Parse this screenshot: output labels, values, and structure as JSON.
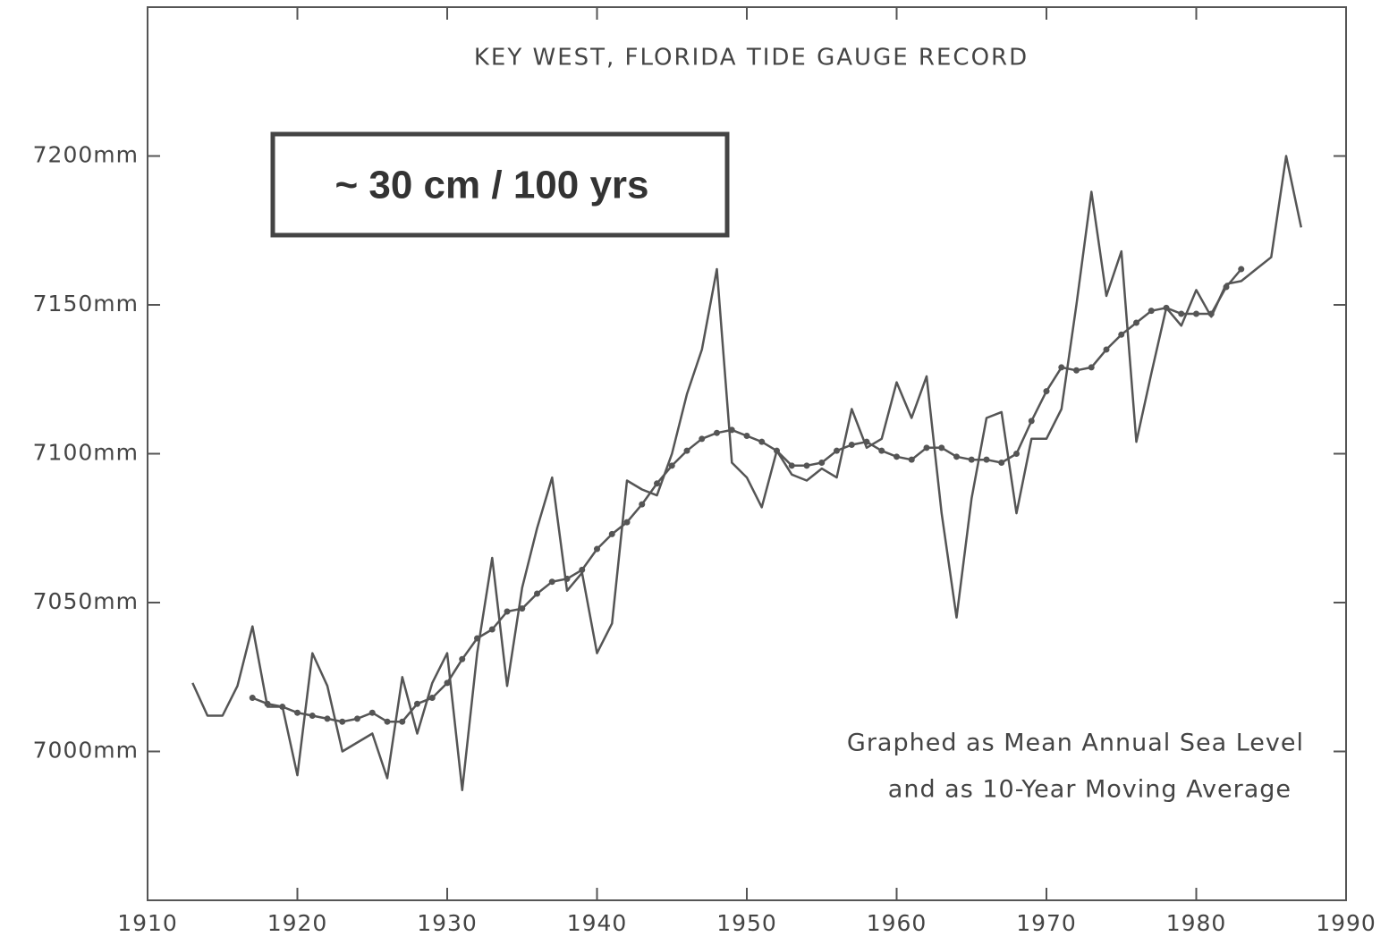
{
  "chart_data": {
    "type": "line",
    "title": "KEY WEST, FLORIDA TIDE GAUGE RECORD",
    "annotations": [
      "~ 30 cm / 100 yrs",
      "Graphed as Mean Annual Sea Level",
      "and as 10-Year Moving Average"
    ],
    "xlim": [
      1910,
      1990
    ],
    "xticks": [
      1910,
      1920,
      1930,
      1940,
      1950,
      1960,
      1970,
      1980,
      1990
    ],
    "ylim": [
      6950,
      7250
    ],
    "yticks": [
      {
        "value": 7000,
        "label": "7000mm"
      },
      {
        "value": 7050,
        "label": "7050mm"
      },
      {
        "value": 7100,
        "label": "7100mm"
      },
      {
        "value": 7150,
        "label": "7150mm"
      },
      {
        "value": 7200,
        "label": "7200mm"
      }
    ],
    "series": [
      {
        "color": "#555555",
        "markers": false,
        "x": [
          1913,
          1914,
          1915,
          1916,
          1917,
          1918,
          1919,
          1920,
          1921,
          1922,
          1923,
          1924,
          1925,
          1926,
          1927,
          1928,
          1929,
          1930,
          1931,
          1932,
          1933,
          1934,
          1935,
          1936,
          1937,
          1938,
          1939,
          1940,
          1941,
          1942,
          1943,
          1944,
          1945,
          1946,
          1947,
          1948,
          1949,
          1950,
          1951,
          1952,
          1953,
          1954,
          1955,
          1956,
          1957,
          1958,
          1959,
          1960,
          1961,
          1962,
          1963,
          1964,
          1965,
          1966,
          1967,
          1968,
          1969,
          1970,
          1971,
          1972,
          1973,
          1974,
          1975,
          1976,
          1977,
          1978,
          1979,
          1980,
          1981,
          1982,
          1983,
          1984,
          1985,
          1986,
          1987
        ],
        "values": [
          7023,
          7012,
          7012,
          7022,
          7042,
          7015,
          7015,
          6992,
          7033,
          7022,
          7000,
          7003,
          7006,
          6991,
          7025,
          7006,
          7023,
          7033,
          6987,
          7033,
          7065,
          7022,
          7055,
          7075,
          7092,
          7054,
          7060,
          7033,
          7043,
          7091,
          7088,
          7086,
          7100,
          7120,
          7135,
          7162,
          7097,
          7092,
          7082,
          7101,
          7093,
          7091,
          7095,
          7092,
          7115,
          7102,
          7105,
          7124,
          7112,
          7126,
          7080,
          7045,
          7085,
          7112,
          7114,
          7080,
          7105,
          7105,
          7115,
          7150,
          7188,
          7153,
          7168,
          7104,
          7127,
          7149,
          7143,
          7155,
          7146,
          7157,
          7158,
          7162,
          7166,
          7200,
          7176
        ]
      },
      {
        "color": "#555555",
        "markers": true,
        "x": [
          1917,
          1918,
          1919,
          1920,
          1921,
          1922,
          1923,
          1924,
          1925,
          1926,
          1927,
          1928,
          1929,
          1930,
          1931,
          1932,
          1933,
          1934,
          1935,
          1936,
          1937,
          1938,
          1939,
          1940,
          1941,
          1942,
          1943,
          1944,
          1945,
          1946,
          1947,
          1948,
          1949,
          1950,
          1951,
          1952,
          1953,
          1954,
          1955,
          1956,
          1957,
          1958,
          1959,
          1960,
          1961,
          1962,
          1963,
          1964,
          1965,
          1966,
          1967,
          1968,
          1969,
          1970,
          1971,
          1972,
          1973,
          1974,
          1975,
          1976,
          1977,
          1978,
          1979,
          1980,
          1981,
          1982,
          1983
        ],
        "values": [
          7018,
          7016,
          7015,
          7013,
          7012,
          7011,
          7010,
          7011,
          7013,
          7010,
          7010,
          7016,
          7018,
          7023,
          7031,
          7038,
          7041,
          7047,
          7048,
          7053,
          7057,
          7058,
          7061,
          7068,
          7073,
          7077,
          7083,
          7090,
          7096,
          7101,
          7105,
          7107,
          7108,
          7106,
          7104,
          7101,
          7096,
          7096,
          7097,
          7101,
          7103,
          7104,
          7101,
          7099,
          7098,
          7102,
          7102,
          7099,
          7098,
          7098,
          7097,
          7100,
          7111,
          7121,
          7129,
          7128,
          7129,
          7135,
          7140,
          7144,
          7148,
          7149,
          7147,
          7147,
          7147,
          7156,
          7162
        ]
      }
    ]
  }
}
